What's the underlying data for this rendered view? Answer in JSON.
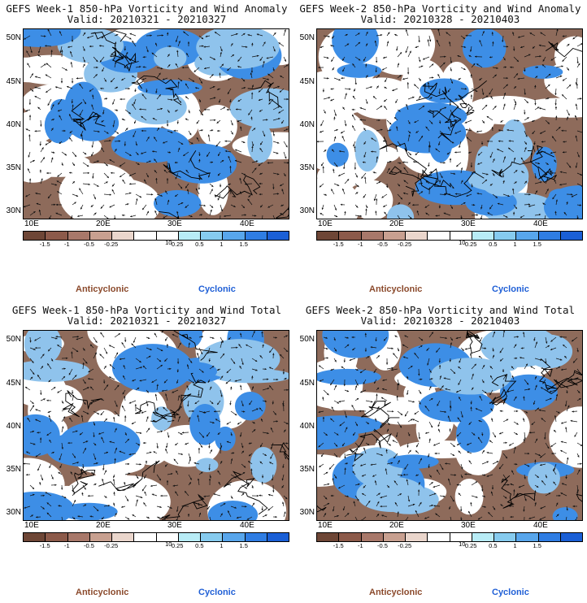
{
  "panels": [
    {
      "title_line1": "GEFS Week-1 850-hPa Vorticity and Wind Anomaly",
      "title_line2": "Valid: 20210321 - 20210327",
      "seed": 11
    },
    {
      "title_line1": "GEFS Week-2 850-hPa Vorticity and Wind Anomaly",
      "title_line2": "Valid: 20210328 - 20210403",
      "seed": 23
    },
    {
      "title_line1": "GEFS Week-1 850-hPa Vorticity and Wind Total",
      "title_line2": "Valid: 20210321 - 20210327",
      "seed": 37
    },
    {
      "title_line1": "GEFS Week-2 850-hPa Vorticity and Wind Total",
      "title_line2": "Valid: 20210328 - 20210403",
      "seed": 53
    }
  ],
  "lat_labels": [
    "50N",
    "45N",
    "40N",
    "35N",
    "30N"
  ],
  "lon_labels": [
    "10E",
    "20E",
    "30E",
    "40E"
  ],
  "colorbar": {
    "labels": [
      "-1.5",
      "-1",
      "-0.5",
      "-0.25",
      "0.25",
      "0.5",
      "1",
      "1.5"
    ],
    "colors": [
      "#6e4636",
      "#8c5a4a",
      "#a8786a",
      "#c8a090",
      "#ead6cc",
      "#ffffff",
      "#ffffff",
      "#b8ecf6",
      "#86cbef",
      "#58a6ec",
      "#2f7de3",
      "#1a5fd6"
    ],
    "unit_label": "10"
  },
  "annotations": {
    "anticyclonic": "Anticyclonic",
    "cyclonic": "Cyclonic",
    "anticyclonic_color": "#8b4a2c",
    "cyclonic_color": "#1f5fd6"
  },
  "map_palette": {
    "land_neg": "#8e6b5b",
    "neutral": "#ffffff",
    "pos_light": "#8fc3ec",
    "pos": "#3d8ee6",
    "coast": "#000000"
  }
}
